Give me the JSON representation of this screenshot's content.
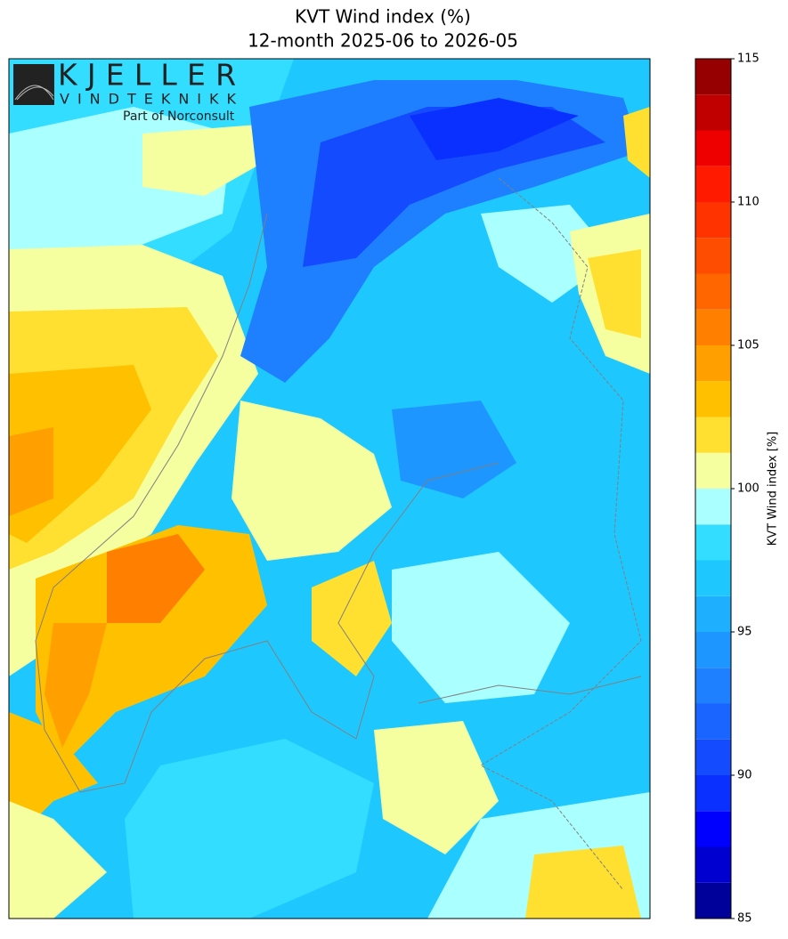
{
  "chart_data": {
    "type": "contour-map",
    "title": "KVT Wind index (%)",
    "subtitle": "12-month 2025-06 to 2026-05",
    "colorbar": {
      "label": "KVT Wind index [%]",
      "levels": [
        85,
        86.25,
        87.5,
        88.75,
        90,
        91.25,
        92.5,
        93.75,
        95,
        96.25,
        97.5,
        98.75,
        100,
        101.25,
        102.5,
        103.75,
        105,
        106.25,
        107.5,
        108.75,
        110,
        111.25,
        112.5,
        113.75,
        115
      ],
      "colors": [
        "#00009a",
        "#0000d0",
        "#0000ff",
        "#0a30ff",
        "#144bff",
        "#1a64ff",
        "#1e80ff",
        "#1e96ff",
        "#1eb0ff",
        "#1ec8ff",
        "#33ddff",
        "#aaffff",
        "#f5ffa0",
        "#ffe030",
        "#ffc000",
        "#ffa000",
        "#ff8000",
        "#ff6600",
        "#ff4d00",
        "#ff3300",
        "#ff1a00",
        "#ee0000",
        "#c00000",
        "#960000"
      ],
      "ticks": [
        85,
        90,
        95,
        100,
        105,
        110,
        115
      ]
    }
  },
  "logo": {
    "name": "KJELLER",
    "sub": "VINDTEKNIKK",
    "tagline": "Part of Norconsult"
  }
}
